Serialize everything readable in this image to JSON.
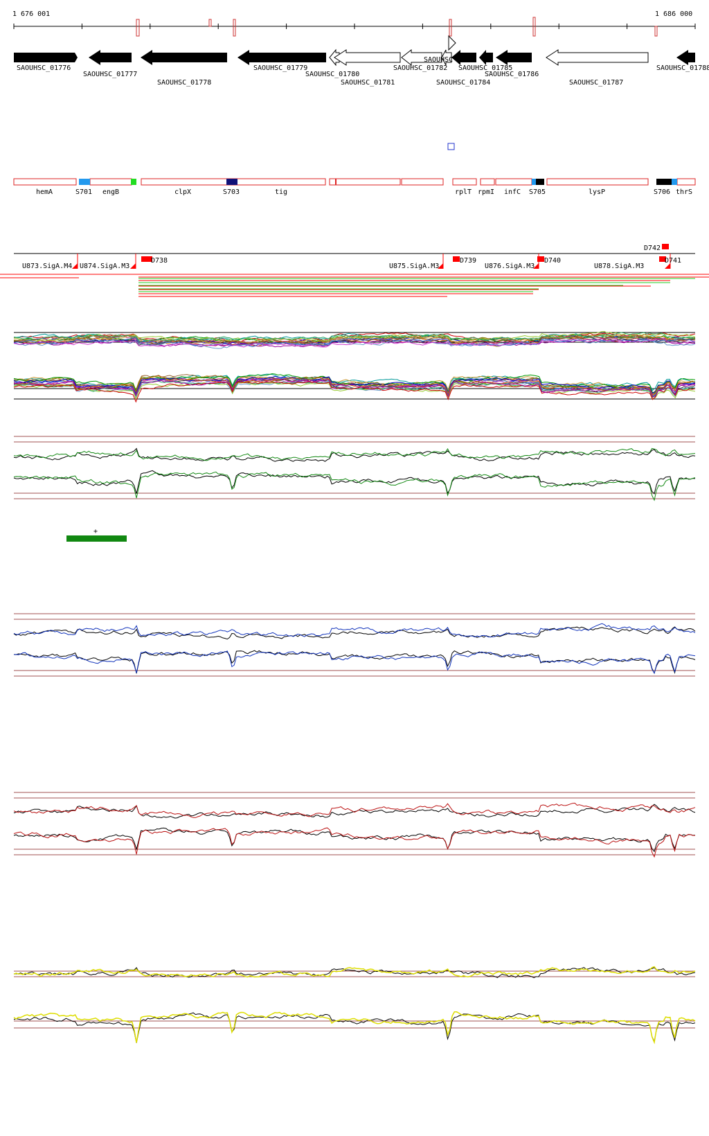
{
  "ruler": {
    "start_label": "1 676 001",
    "end_label": "1 686 000"
  },
  "genes_top": [
    {
      "label": "SAOUHSC_01776",
      "fill": "black"
    },
    {
      "label": "SAOUHSC_01777",
      "fill": "black"
    },
    {
      "label": "SAOUHSC_01778",
      "fill": "black"
    },
    {
      "label": "SAOUHSC_01779",
      "fill": "black"
    },
    {
      "label": "SAOUHSC_01780",
      "fill": "white"
    },
    {
      "label": "SAOUHSC_01781",
      "fill": "white"
    },
    {
      "label": "SAOUHSC_01782",
      "fill": "white"
    },
    {
      "label": "SAOUHSC",
      "fill": "white"
    },
    {
      "label": "SAOUHSC_01784",
      "fill": "black"
    },
    {
      "label": "SAOUHSC_01785",
      "fill": "black"
    },
    {
      "label": "SAOUHSC_01786",
      "fill": "black"
    },
    {
      "label": "SAOUHSC_01787",
      "fill": "white"
    },
    {
      "label": "SAOUHSC_01788",
      "fill": "black"
    }
  ],
  "features": [
    {
      "label": "hemA"
    },
    {
      "label": "S701"
    },
    {
      "label": "engB"
    },
    {
      "label": "clpX"
    },
    {
      "label": "S703"
    },
    {
      "label": "tig"
    },
    {
      "label": "rplT"
    },
    {
      "label": "rpmI"
    },
    {
      "label": "infC"
    },
    {
      "label": "S705"
    },
    {
      "label": "lysP"
    },
    {
      "label": "S706"
    },
    {
      "label": "thrS"
    }
  ],
  "segments": [
    {
      "label": "U873.SigA.M4"
    },
    {
      "label": "U874.SigA.M3"
    },
    {
      "label": "D738"
    },
    {
      "label": "U875.SigA.M3"
    },
    {
      "label": "D739"
    },
    {
      "label": "U876.SigA.M3"
    },
    {
      "label": "D740"
    },
    {
      "label": "U878.SigA.M3"
    },
    {
      "label": "D742"
    },
    {
      "label": "D741"
    }
  ],
  "marker": {
    "label": "+"
  },
  "colors": {
    "feature_outline": "#dd2222",
    "segment_red": "#ff0000",
    "green_track": "#118811",
    "blue_track": "#1133bb",
    "red_track": "#bb1111",
    "yellow_track": "#dddd00",
    "reference_line": "#a05050"
  }
}
